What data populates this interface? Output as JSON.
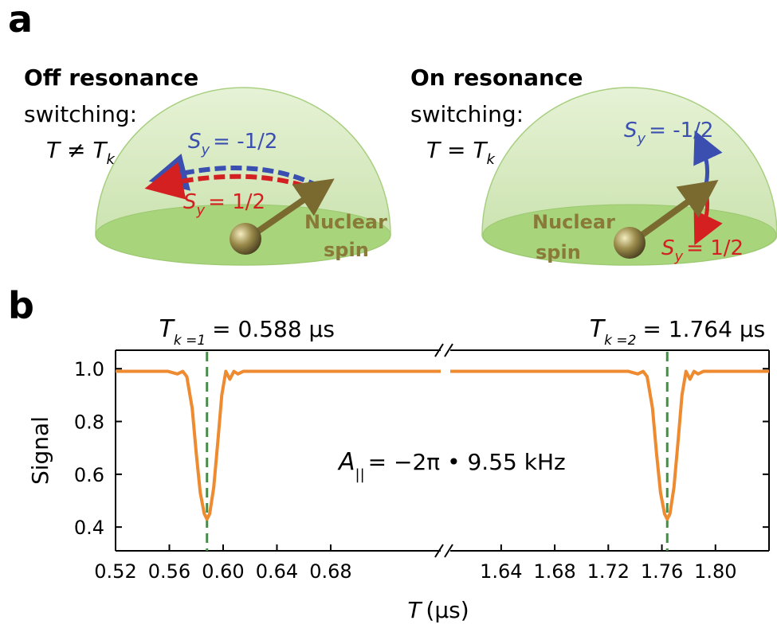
{
  "panel_a": {
    "label": "a",
    "left": {
      "title": "Off resonance",
      "subtitle": "switching:",
      "condition": {
        "text": "T ≠ T",
        "subscript": "k"
      },
      "sy_up": {
        "symbol": "S",
        "subscript": "y",
        "text": "= -1/2"
      },
      "sy_down": {
        "symbol": "S",
        "subscript": "y",
        "text": "= 1/2"
      },
      "nucleus": [
        "Nuclear",
        "spin"
      ]
    },
    "right": {
      "title": "On resonance",
      "subtitle": "switching:",
      "condition": {
        "text": "T = T",
        "subscript": "k"
      },
      "sy_up": {
        "symbol": "S",
        "subscript": "y",
        "text": "= -1/2"
      },
      "sy_down": {
        "symbol": "S",
        "subscript": "y",
        "text": "= 1/2"
      },
      "nucleus": [
        "Nuclear",
        "spin"
      ]
    }
  },
  "chart_data": {
    "type": "line",
    "panel_label": "b",
    "y_label": "Signal",
    "x_label": {
      "symbol": "T",
      "unit": "(μs)"
    },
    "ylim": [
      0.31,
      1.07
    ],
    "yticks": [
      {
        "value": 1.0,
        "label": "1.0"
      },
      0.8,
      0.6,
      0.4
    ],
    "x_segments": [
      {
        "xlim": [
          0.52,
          0.7618
        ],
        "xticks": [
          0.52,
          0.56,
          {
            "value": 0.6,
            "label": "0.60"
          },
          0.64,
          0.68
        ]
      },
      {
        "xlim": [
          1.602,
          1.84
        ],
        "xticks": [
          1.64,
          1.68,
          1.72,
          1.76,
          {
            "value": 1.8,
            "label": "1.80"
          }
        ]
      }
    ],
    "series": [
      {
        "color": "#ee8a30",
        "x": [
          0.52,
          0.54,
          0.559,
          0.566,
          0.57,
          0.573,
          0.577,
          0.58,
          0.583,
          0.586,
          0.588,
          0.59,
          0.593,
          0.596,
          0.599,
          0.602,
          0.605,
          0.608,
          0.611,
          0.615,
          0.64,
          0.7,
          0.7618,
          null,
          1.602,
          1.64,
          1.7,
          1.735,
          1.742,
          1.746,
          1.749,
          1.753,
          1.756,
          1.759,
          1.762,
          1.764,
          1.766,
          1.769,
          1.772,
          1.775,
          1.778,
          1.781,
          1.784,
          1.787,
          1.791,
          1.8,
          1.84
        ],
        "values": [
          0.99,
          0.99,
          0.99,
          0.98,
          0.99,
          0.97,
          0.85,
          0.68,
          0.53,
          0.45,
          0.43,
          0.45,
          0.55,
          0.72,
          0.9,
          0.99,
          0.96,
          0.99,
          0.98,
          0.99,
          0.99,
          0.99,
          0.99,
          null,
          0.99,
          0.99,
          0.99,
          0.99,
          0.98,
          0.99,
          0.97,
          0.85,
          0.68,
          0.53,
          0.45,
          0.43,
          0.45,
          0.55,
          0.72,
          0.9,
          0.99,
          0.96,
          0.99,
          0.98,
          0.99,
          0.99,
          0.99
        ]
      }
    ],
    "resonances": [
      {
        "x": 0.588,
        "symbol": "T",
        "subscript": "k =1",
        "text": "= 0.588 μs"
      },
      {
        "x": 1.764,
        "symbol": "T",
        "subscript": "k =2",
        "text": "= 1.764 μs"
      }
    ],
    "resonance_color": "#4a8a4a",
    "annotation": {
      "symbol": "A",
      "subscript": "||",
      "text": "= −2π • 9.55 kHz"
    }
  }
}
